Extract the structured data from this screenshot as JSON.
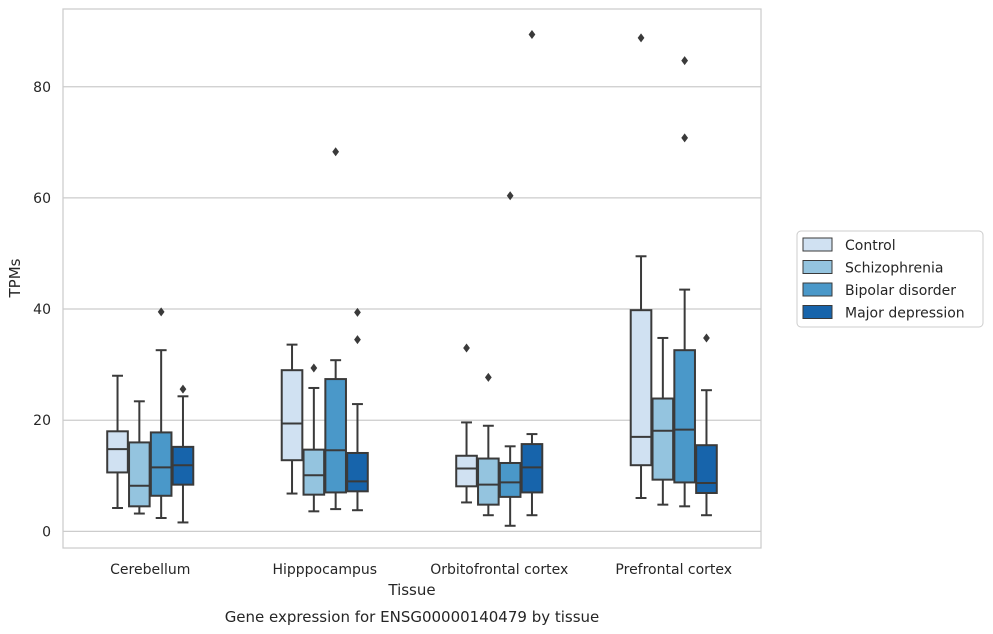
{
  "chart_data": {
    "type": "box",
    "title": "Gene expression for ENSG00000140479 by tissue",
    "xlabel": "Tissue",
    "ylabel": "TPMs",
    "ylim": [
      -3,
      94
    ],
    "yticks": [
      0,
      20,
      40,
      60,
      80
    ],
    "grid": "horizontal",
    "legend_position": "right",
    "categories": [
      "Cerebellum",
      "Hipppocampus",
      "Orbitofrontal cortex",
      "Prefrontal cortex"
    ],
    "series": [
      {
        "name": "Control",
        "color": "#d0e1f2",
        "boxes": [
          {
            "whislo": 4.2,
            "q1": 10.6,
            "med": 14.8,
            "q3": 18.0,
            "whishi": 28.0,
            "fliers": []
          },
          {
            "whislo": 6.8,
            "q1": 12.8,
            "med": 19.4,
            "q3": 29.0,
            "whishi": 33.6,
            "fliers": []
          },
          {
            "whislo": 5.2,
            "q1": 8.1,
            "med": 11.3,
            "q3": 13.6,
            "whishi": 19.6,
            "fliers": [
              33.0
            ]
          },
          {
            "whislo": 6.0,
            "q1": 11.9,
            "med": 17.0,
            "q3": 39.8,
            "whishi": 49.5,
            "fliers": [
              88.8
            ]
          }
        ]
      },
      {
        "name": "Schizophrenia",
        "color": "#94c4df",
        "boxes": [
          {
            "whislo": 3.2,
            "q1": 4.5,
            "med": 8.2,
            "q3": 16.0,
            "whishi": 23.4,
            "fliers": []
          },
          {
            "whislo": 3.6,
            "q1": 6.6,
            "med": 10.1,
            "q3": 14.7,
            "whishi": 25.8,
            "fliers": [
              29.4
            ]
          },
          {
            "whislo": 2.9,
            "q1": 4.8,
            "med": 8.4,
            "q3": 13.1,
            "whishi": 19.0,
            "fliers": [
              27.7
            ]
          },
          {
            "whislo": 4.8,
            "q1": 9.3,
            "med": 18.1,
            "q3": 23.9,
            "whishi": 34.8,
            "fliers": []
          }
        ]
      },
      {
        "name": "Bipolar disorder",
        "color": "#4a98c9",
        "boxes": [
          {
            "whislo": 2.4,
            "q1": 6.4,
            "med": 11.5,
            "q3": 17.8,
            "whishi": 32.6,
            "fliers": [
              39.5
            ]
          },
          {
            "whislo": 4.0,
            "q1": 7.0,
            "med": 14.6,
            "q3": 27.4,
            "whishi": 30.8,
            "fliers": [
              68.3
            ]
          },
          {
            "whislo": 1.0,
            "q1": 6.2,
            "med": 8.8,
            "q3": 12.3,
            "whishi": 15.3,
            "fliers": [
              60.4
            ]
          },
          {
            "whislo": 4.5,
            "q1": 8.8,
            "med": 18.3,
            "q3": 32.6,
            "whishi": 43.5,
            "fliers": [
              70.8,
              84.7
            ]
          }
        ]
      },
      {
        "name": "Major depression",
        "color": "#1764ab",
        "boxes": [
          {
            "whislo": 1.6,
            "q1": 8.4,
            "med": 11.9,
            "q3": 15.2,
            "whishi": 24.3,
            "fliers": [
              25.6
            ]
          },
          {
            "whislo": 3.8,
            "q1": 7.2,
            "med": 9.0,
            "q3": 14.1,
            "whishi": 22.9,
            "fliers": [
              34.5,
              39.4
            ]
          },
          {
            "whislo": 2.9,
            "q1": 7.0,
            "med": 11.5,
            "q3": 15.7,
            "whishi": 17.5,
            "fliers": [
              89.4
            ]
          },
          {
            "whislo": 2.9,
            "q1": 6.9,
            "med": 8.7,
            "q3": 15.5,
            "whishi": 25.4,
            "fliers": [
              34.8
            ]
          }
        ]
      }
    ]
  }
}
